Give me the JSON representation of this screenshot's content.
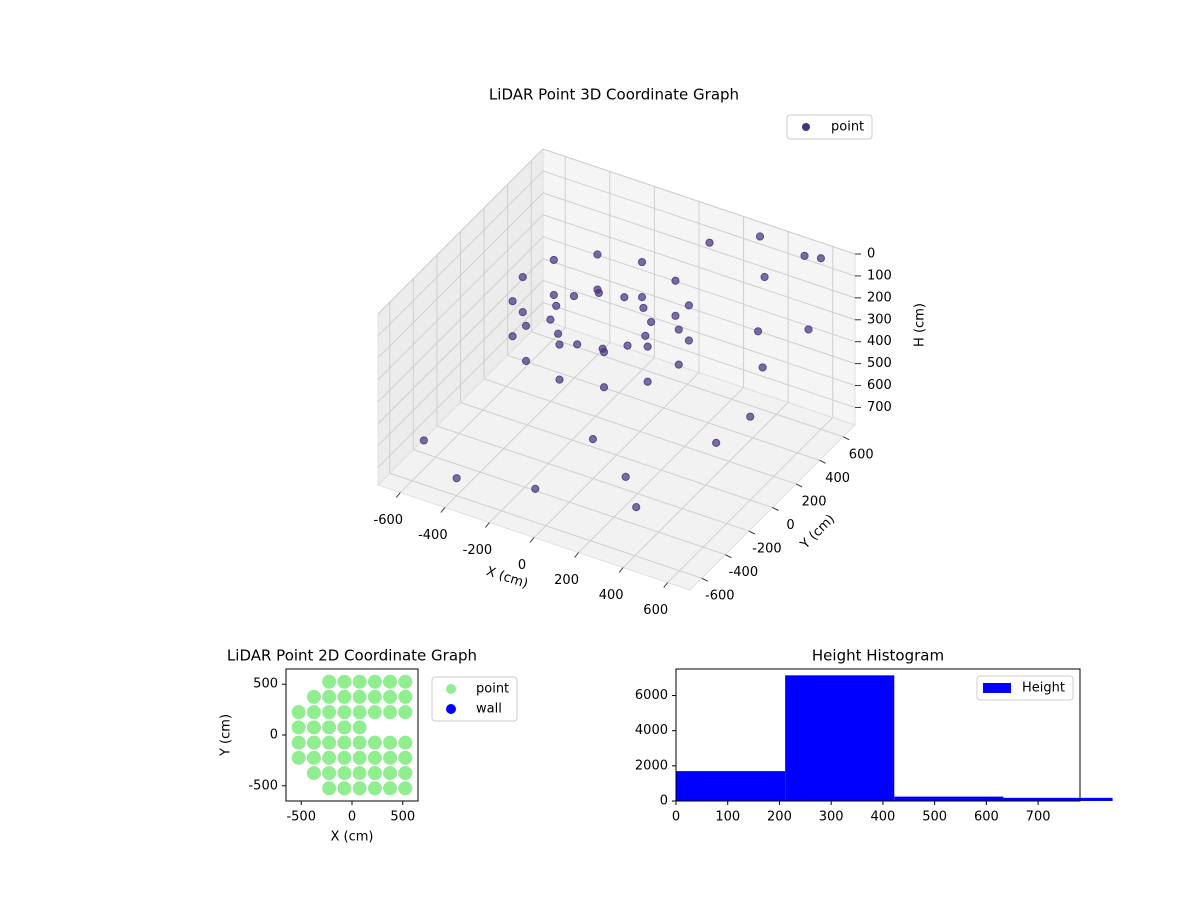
{
  "chart_data": [
    {
      "type": "scatter3d",
      "title": "LiDAR Point 3D Coordinate Graph",
      "xlabel": "X (cm)",
      "ylabel": "Y (cm)",
      "zlabel": "H (cm)",
      "xlim": [
        -700,
        700
      ],
      "ylim": [
        -700,
        700
      ],
      "zlim": [
        780,
        0
      ],
      "xticks": [
        -600,
        -400,
        -200,
        0,
        200,
        400,
        600
      ],
      "yticks": [
        -600,
        -400,
        -200,
        0,
        200,
        400,
        600
      ],
      "zticks": [
        0,
        100,
        200,
        300,
        400,
        500,
        600,
        700
      ],
      "legend": "upper right",
      "series": [
        {
          "name": "point",
          "color": "#46327e",
          "x": [
            200,
            153,
            25,
            -150,
            -325,
            -453,
            -500,
            -453,
            -325,
            -150,
            25,
            153,
            200,
            153,
            25,
            -150,
            -325,
            -453,
            -500,
            -453,
            -325,
            -150,
            25,
            153,
            50,
            23,
            -50,
            -150,
            -250,
            -323,
            -350,
            -323,
            -250,
            -150,
            -50,
            23,
            600,
            500,
            650,
            400,
            300,
            550,
            600,
            500,
            200,
            -100,
            -400,
            -600,
            0,
            300,
            100,
            450
          ],
          "y": [
            150,
            325,
            453,
            500,
            453,
            325,
            150,
            -25,
            -153,
            -200,
            -153,
            -25,
            150,
            325,
            453,
            500,
            453,
            325,
            150,
            -25,
            -153,
            -200,
            -153,
            -25,
            150,
            250,
            323,
            350,
            323,
            250,
            150,
            50,
            -23,
            -50,
            -23,
            50,
            600,
            650,
            400,
            500,
            650,
            200,
            0,
            -100,
            -300,
            -500,
            -600,
            -500,
            -200,
            -400,
            600,
            350
          ],
          "z": [
            220,
            220,
            220,
            220,
            220,
            220,
            220,
            220,
            220,
            220,
            220,
            220,
            380,
            380,
            380,
            380,
            380,
            380,
            380,
            380,
            380,
            380,
            380,
            380,
            300,
            300,
            300,
            300,
            300,
            300,
            300,
            300,
            300,
            300,
            300,
            300,
            0,
            50,
            200,
            100,
            30,
            300,
            400,
            500,
            650,
            700,
            700,
            650,
            600,
            700,
            100,
            250
          ]
        }
      ]
    },
    {
      "type": "scatter",
      "title": "LiDAR Point 2D Coordinate Graph",
      "xlabel": "X (cm)",
      "ylabel": "Y (cm)",
      "xlim": [
        -650,
        650
      ],
      "ylim": [
        -650,
        650
      ],
      "xticks": [
        -500,
        0,
        500
      ],
      "yticks": [
        -500,
        0,
        500
      ],
      "legend": "outside upper right",
      "series": [
        {
          "name": "point",
          "color": "#90ee90",
          "x": [
            -525,
            -525,
            -525,
            -525,
            -375,
            -375,
            -375,
            -375,
            -375,
            -375,
            -225,
            -225,
            -225,
            -225,
            -225,
            -225,
            -225,
            -225,
            -75,
            -75,
            -75,
            -75,
            -75,
            -75,
            -75,
            -75,
            75,
            75,
            75,
            75,
            75,
            75,
            75,
            75,
            225,
            225,
            225,
            225,
            225,
            225,
            225,
            375,
            375,
            375,
            375,
            375,
            375,
            375,
            525,
            525,
            525,
            525,
            525,
            525,
            525
          ],
          "y": [
            -225,
            -75,
            75,
            225,
            -375,
            -225,
            -75,
            75,
            225,
            375,
            -525,
            -375,
            -225,
            -75,
            75,
            225,
            375,
            525,
            -525,
            -375,
            -225,
            -75,
            75,
            225,
            375,
            525,
            -525,
            -375,
            -225,
            -75,
            75,
            225,
            375,
            525,
            -525,
            -375,
            -225,
            -75,
            225,
            375,
            525,
            -525,
            -375,
            -225,
            -75,
            225,
            375,
            525,
            -525,
            -375,
            -225,
            -75,
            225,
            375,
            525
          ]
        },
        {
          "name": "wall",
          "color": "#0000ff",
          "x": [],
          "y": []
        }
      ]
    },
    {
      "type": "histogram",
      "title": "Height Histogram",
      "name": "Height",
      "color": "#0000ff",
      "bins": [
        0,
        211,
        422,
        633,
        844
      ],
      "counts": [
        1700,
        7150,
        250,
        180
      ],
      "xlim": [
        0,
        781
      ],
      "ylim": [
        0,
        7510
      ],
      "xticks": [
        0,
        100,
        200,
        300,
        400,
        500,
        600,
        700
      ],
      "yticks": [
        0,
        2000,
        4000,
        6000
      ],
      "legend": "upper right"
    }
  ]
}
